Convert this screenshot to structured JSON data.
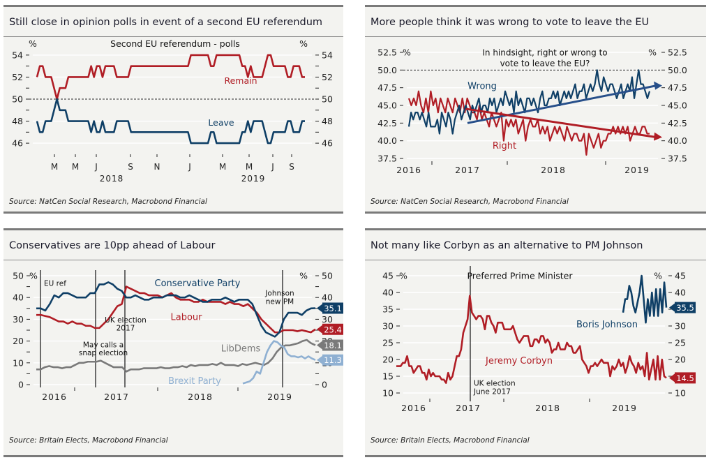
{
  "colors": {
    "red": "#b01d25",
    "navy": "#0f3f66",
    "grey": "#7a7a7a",
    "lightblue": "#8fb0d2",
    "trendblue": "#274f8a"
  },
  "panels": [
    {
      "title": "Still close in opinion polls in event of a second EU referendum",
      "source": "Source: NatCen Social Research, Macrobond Financial"
    },
    {
      "title": "More people think it was wrong to vote to leave the EU",
      "source": "Source: NatCen Social Research, Macrobond Financial"
    },
    {
      "title": "Conservatives are 10pp ahead of Labour",
      "source": "Source: Britain Elects, Macrobond Financial"
    },
    {
      "title": "Not many like Corbyn as an alternative to PM Johnson",
      "source": "Source: Britain Elects, Macrobond Financial"
    }
  ],
  "chart_data": [
    {
      "type": "line",
      "title": "Second EU referendum - polls",
      "ylabel_left": "%",
      "ylabel_right": "%",
      "ylim": [
        45.5,
        54.5
      ],
      "yticks": [
        46,
        48,
        50,
        52,
        54
      ],
      "reference_line": 50,
      "xticks": [
        "M",
        "M",
        "J",
        "S",
        "N",
        "J",
        "M",
        "M",
        "J",
        "S"
      ],
      "xyears": [
        "2018",
        "2019"
      ],
      "series": [
        {
          "name": "Remain",
          "color": "red",
          "values": [
            52,
            53,
            53,
            52,
            52,
            52,
            51,
            50,
            51,
            51,
            51,
            52,
            52,
            52,
            52,
            52,
            52,
            52,
            52,
            53,
            52,
            53,
            53,
            52,
            53,
            53,
            53,
            53,
            52,
            52,
            52,
            52,
            52,
            53,
            53,
            53,
            53,
            53,
            53,
            53,
            53,
            53,
            53,
            53,
            53,
            53,
            53,
            53,
            53,
            53,
            53,
            53,
            53,
            53,
            54,
            54,
            54,
            54,
            54,
            54,
            54,
            53,
            53,
            54,
            54,
            54,
            54,
            54,
            54,
            54,
            54,
            54,
            53,
            53,
            52,
            53,
            52,
            52,
            52,
            52,
            53,
            54,
            54,
            53,
            53,
            53,
            53,
            53,
            52,
            52,
            53,
            53,
            53,
            52,
            52
          ]
        },
        {
          "name": "Leave",
          "color": "navy",
          "values": [
            48,
            47,
            47,
            48,
            48,
            48,
            49,
            50,
            49,
            49,
            49,
            48,
            48,
            48,
            48,
            48,
            48,
            48,
            48,
            47,
            48,
            47,
            47,
            48,
            47,
            47,
            47,
            47,
            48,
            48,
            48,
            48,
            48,
            47,
            47,
            47,
            47,
            47,
            47,
            47,
            47,
            47,
            47,
            47,
            47,
            47,
            47,
            47,
            47,
            47,
            47,
            47,
            47,
            47,
            46,
            46,
            46,
            46,
            46,
            46,
            46,
            47,
            47,
            46,
            46,
            46,
            46,
            46,
            46,
            46,
            46,
            46,
            47,
            47,
            48,
            47,
            48,
            48,
            48,
            48,
            47,
            46,
            46,
            47,
            47,
            47,
            47,
            47,
            48,
            48,
            47,
            47,
            47,
            48,
            48
          ]
        }
      ]
    },
    {
      "type": "line",
      "title": "In hindsight, right or wrong to vote to leave the EU?",
      "ylabel_left": "%",
      "ylabel_right": "%",
      "ylim": [
        36.5,
        53
      ],
      "yticks": [
        "37.5",
        "40.0",
        "42.5",
        "45.0",
        "47.5",
        "50.0",
        "52.5"
      ],
      "reference_line": 50.0,
      "xticks": [
        "2016",
        "2017",
        "2018",
        "2019"
      ],
      "series": [
        {
          "name": "Wrong",
          "color": "navy",
          "values": [
            42,
            44,
            43,
            44,
            44,
            43,
            44,
            43,
            42,
            44,
            42,
            42,
            42,
            43,
            41,
            44,
            43,
            42,
            44,
            43,
            41,
            43,
            44,
            45,
            43,
            44,
            45,
            44,
            43,
            45,
            44,
            45,
            46,
            44,
            45,
            45,
            44,
            46,
            45,
            46,
            44,
            45,
            46,
            45,
            47,
            46,
            45,
            46,
            44,
            47,
            45,
            46,
            45,
            44,
            46,
            46,
            45,
            46,
            45,
            44,
            46,
            47,
            45,
            45,
            46,
            46,
            47,
            46,
            47,
            45,
            46,
            47,
            46,
            47,
            46,
            47,
            48,
            46,
            47,
            47,
            48,
            46,
            47,
            48,
            47,
            48,
            50,
            48,
            47,
            49,
            48,
            47,
            48,
            48,
            47,
            46,
            47,
            48,
            46,
            47,
            48,
            47,
            49,
            46,
            48,
            50,
            48,
            48,
            47,
            46,
            47
          ]
        },
        {
          "name": "Right",
          "color": "red",
          "values": [
            46,
            45,
            46,
            45,
            47,
            45,
            44,
            46,
            44,
            47,
            45,
            46,
            44,
            46,
            45,
            44,
            46,
            45,
            44,
            46,
            45,
            44,
            46,
            44,
            46,
            45,
            44,
            44,
            43,
            45,
            43,
            44,
            43,
            42,
            44,
            43,
            42,
            43,
            44,
            40,
            43,
            42,
            43,
            42,
            43,
            41,
            42,
            43,
            40,
            42,
            43,
            42,
            42,
            43,
            41,
            42,
            41,
            42,
            40,
            41,
            42,
            41,
            42,
            41,
            40,
            42,
            41,
            40,
            41,
            41,
            40,
            40,
            41,
            38,
            41,
            40,
            39,
            40,
            41,
            39,
            40,
            40,
            41,
            41,
            42,
            41,
            42,
            41,
            42,
            41,
            42,
            40,
            41,
            42,
            41,
            41,
            42,
            42,
            41,
            41
          ]
        },
        {
          "name": "Wrong trend",
          "color": "trendblue",
          "from": 42.5,
          "to": 47.8,
          "start_index": 35
        },
        {
          "name": "Right trend",
          "color": "red",
          "from": 44.5,
          "to": 40.5,
          "start_index": 35
        }
      ]
    },
    {
      "type": "line",
      "title": "Conservatives are 10pp ahead of Labour",
      "ylabel_left": "%",
      "ylabel_right": "%",
      "ylim": [
        0,
        50
      ],
      "yticks": [
        0,
        10,
        20,
        30,
        40,
        50
      ],
      "xticks": [
        "2016",
        "2017",
        "2018",
        "2019"
      ],
      "annotations": [
        "EU ref",
        "May calls a snap election",
        "UK election 2017",
        "Johnson new PM"
      ],
      "series": [
        {
          "name": "Conservative Party",
          "color": "navy",
          "end_label": "35.1",
          "values": [
            35,
            35,
            34,
            37,
            41,
            40,
            42,
            42,
            41,
            40,
            40,
            40,
            42,
            42,
            46,
            46,
            47,
            46,
            44,
            43,
            40,
            40,
            41,
            40,
            39,
            39,
            40,
            40,
            40,
            41,
            41,
            41,
            40,
            40,
            41,
            40,
            39,
            38,
            38,
            39,
            39,
            39,
            40,
            39,
            38,
            39,
            39,
            39,
            37,
            32,
            27,
            24,
            23,
            22,
            24,
            30,
            33,
            33,
            33,
            32,
            34,
            35,
            35.1
          ]
        },
        {
          "name": "Labour",
          "color": "red",
          "end_label": "25.4",
          "values": [
            32,
            32,
            31.5,
            31,
            30,
            29,
            29,
            28,
            29,
            28,
            28,
            27,
            27,
            26,
            26,
            28,
            30,
            33,
            36,
            37,
            45,
            44,
            43,
            42,
            42,
            41,
            41,
            41,
            40,
            41,
            42,
            40,
            39,
            39,
            39,
            38,
            38,
            39,
            38,
            38,
            38,
            38,
            37,
            38,
            37,
            37,
            36,
            37,
            35,
            33,
            30,
            28,
            26,
            24,
            24,
            25,
            25,
            25,
            24.5,
            25,
            24.5,
            24,
            25.4
          ]
        },
        {
          "name": "LibDems",
          "color": "grey",
          "end_label": "18.1",
          "values": [
            7,
            7,
            8,
            8.5,
            8,
            8,
            7.5,
            8,
            8,
            9,
            10,
            10,
            10.5,
            10.5,
            10.5,
            11,
            10,
            9,
            8,
            8,
            8,
            6,
            7,
            7,
            7,
            7.5,
            7.5,
            7.5,
            7.5,
            8,
            7.5,
            7.5,
            8,
            8,
            8.5,
            8,
            9,
            8.5,
            9,
            9,
            9,
            9.5,
            9,
            10,
            9,
            9,
            9,
            8.5,
            9.5,
            9,
            9.5,
            10,
            9.5,
            9,
            10,
            12,
            15,
            17,
            18,
            18,
            18.5,
            19,
            20,
            20.5,
            19,
            18.1
          ]
        },
        {
          "name": "Brexit Party",
          "color": "lightblue",
          "end_label": "11.3",
          "values": [
            0.5,
            1,
            1.5,
            3,
            6,
            5,
            10,
            15,
            18,
            20,
            19.5,
            18,
            17,
            14,
            13,
            13,
            12.5,
            13,
            12,
            13,
            12,
            11.3
          ]
        }
      ]
    },
    {
      "type": "line",
      "title": "Preferred Prime Minister",
      "ylabel_left": "%",
      "ylabel_right": "%",
      "ylim": [
        10,
        45
      ],
      "yticks": [
        10,
        15,
        20,
        25,
        30,
        35,
        40,
        45
      ],
      "xticks": [
        "2016",
        "2017",
        "2018",
        "2019"
      ],
      "annotations": [
        "UK election June 2017"
      ],
      "series": [
        {
          "name": "Jeremy Corbyn",
          "color": "red",
          "end_label": "14.5",
          "values": [
            18,
            18,
            18,
            19,
            19,
            21,
            18,
            18,
            16,
            17,
            18,
            18,
            16,
            16,
            14,
            17,
            15,
            16,
            15,
            15,
            15,
            14,
            14,
            13,
            16,
            14,
            15,
            18,
            21,
            21,
            23,
            28,
            30,
            32,
            39,
            34,
            33,
            32,
            33,
            33,
            32,
            29,
            33,
            33,
            31,
            30,
            28,
            31,
            31,
            31,
            29,
            29,
            29,
            29,
            30,
            28,
            26,
            25,
            26,
            27,
            27,
            27,
            24,
            24,
            26,
            26,
            25,
            27,
            27,
            25,
            26,
            25,
            22,
            23,
            23,
            25,
            23,
            23,
            23,
            25,
            24,
            24,
            22,
            22,
            23,
            24,
            20,
            19,
            18,
            16,
            18,
            18,
            19,
            18,
            19,
            20,
            19,
            19,
            19,
            15,
            18,
            17,
            18,
            20,
            18,
            19,
            16,
            18,
            21,
            19,
            18,
            16,
            19,
            17,
            18,
            15,
            22,
            14,
            17,
            20,
            14,
            21,
            14,
            20,
            15,
            14.5
          ]
        },
        {
          "name": "Boris Johnson",
          "color": "navy",
          "end_label": "35.5",
          "values": [
            34,
            38,
            38,
            42,
            40,
            36,
            34,
            37,
            40,
            45,
            38,
            31,
            38,
            33,
            40,
            33,
            41,
            33,
            41,
            34,
            43,
            35.5
          ]
        }
      ]
    }
  ]
}
